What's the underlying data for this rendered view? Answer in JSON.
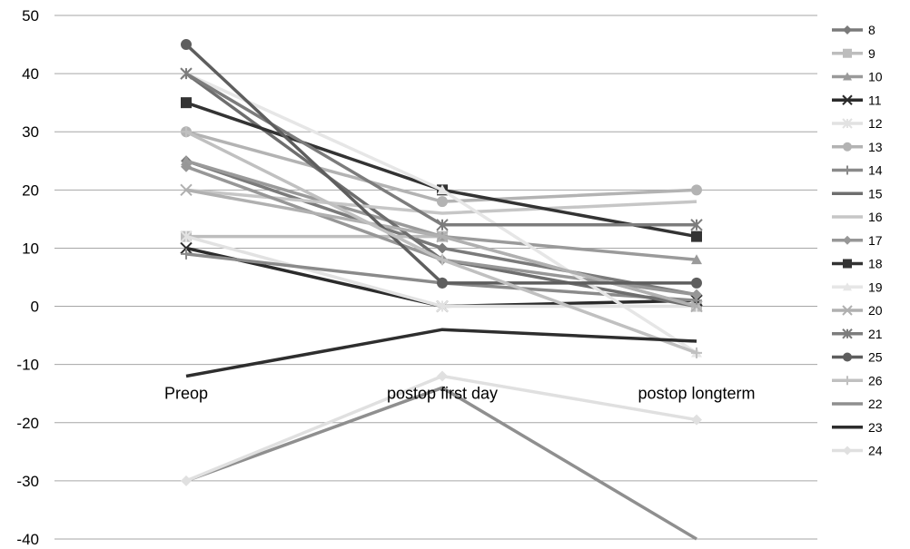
{
  "chart_data": {
    "type": "line",
    "categories": [
      "Preop",
      "postop first day",
      "postop longterm"
    ],
    "ylim": [
      -40,
      50
    ],
    "yticks": [
      -40,
      -30,
      -20,
      -10,
      0,
      10,
      20,
      30,
      40,
      50
    ],
    "grid": true,
    "legend_position": "right",
    "series": [
      {
        "name": "8",
        "values": [
          25,
          10,
          2
        ],
        "color": "#7a7a7a",
        "marker": "diamond"
      },
      {
        "name": "9",
        "values": [
          12,
          12,
          0
        ],
        "color": "#bdbdbd",
        "marker": "square"
      },
      {
        "name": "10",
        "values": [
          25,
          12,
          8
        ],
        "color": "#9a9a9a",
        "marker": "triangle"
      },
      {
        "name": "11",
        "values": [
          10,
          0,
          1
        ],
        "color": "#2b2b2b",
        "marker": "x"
      },
      {
        "name": "12",
        "values": [
          12,
          0,
          0
        ],
        "color": "#e2e2e2",
        "marker": "star"
      },
      {
        "name": "13",
        "values": [
          30,
          18,
          20
        ],
        "color": "#b3b3b3",
        "marker": "circle"
      },
      {
        "name": "14",
        "values": [
          9,
          4,
          1
        ],
        "color": "#8a8a8a",
        "marker": "plus"
      },
      {
        "name": "15",
        "values": [
          40,
          8,
          0
        ],
        "color": "#6e6e6e",
        "marker": "none"
      },
      {
        "name": "16",
        "values": [
          20,
          16,
          18
        ],
        "color": "#c6c6c6",
        "marker": "none"
      },
      {
        "name": "17",
        "values": [
          24,
          8,
          2
        ],
        "color": "#979797",
        "marker": "diamond"
      },
      {
        "name": "18",
        "values": [
          35,
          20,
          12
        ],
        "color": "#333333",
        "marker": "square"
      },
      {
        "name": "19",
        "values": [
          40,
          20,
          -8
        ],
        "color": "#e6e6e6",
        "marker": "triangle"
      },
      {
        "name": "20",
        "values": [
          20,
          12,
          0
        ],
        "color": "#b0b0b0",
        "marker": "x"
      },
      {
        "name": "21",
        "values": [
          40,
          14,
          14
        ],
        "color": "#7c7c7c",
        "marker": "star"
      },
      {
        "name": "25",
        "values": [
          45,
          4,
          4
        ],
        "color": "#5e5e5e",
        "marker": "circle"
      },
      {
        "name": "26",
        "values": [
          30,
          8,
          -8
        ],
        "color": "#c0c0c0",
        "marker": "plus"
      },
      {
        "name": "22",
        "values": [
          -30,
          -14,
          -40
        ],
        "color": "#8f8f8f",
        "marker": "none"
      },
      {
        "name": "23",
        "values": [
          -12,
          -4,
          -6
        ],
        "color": "#2e2e2e",
        "marker": "none"
      },
      {
        "name": "24",
        "values": [
          -30,
          -12,
          -19.5
        ],
        "color": "#e0e0e0",
        "marker": "diamond"
      }
    ]
  }
}
